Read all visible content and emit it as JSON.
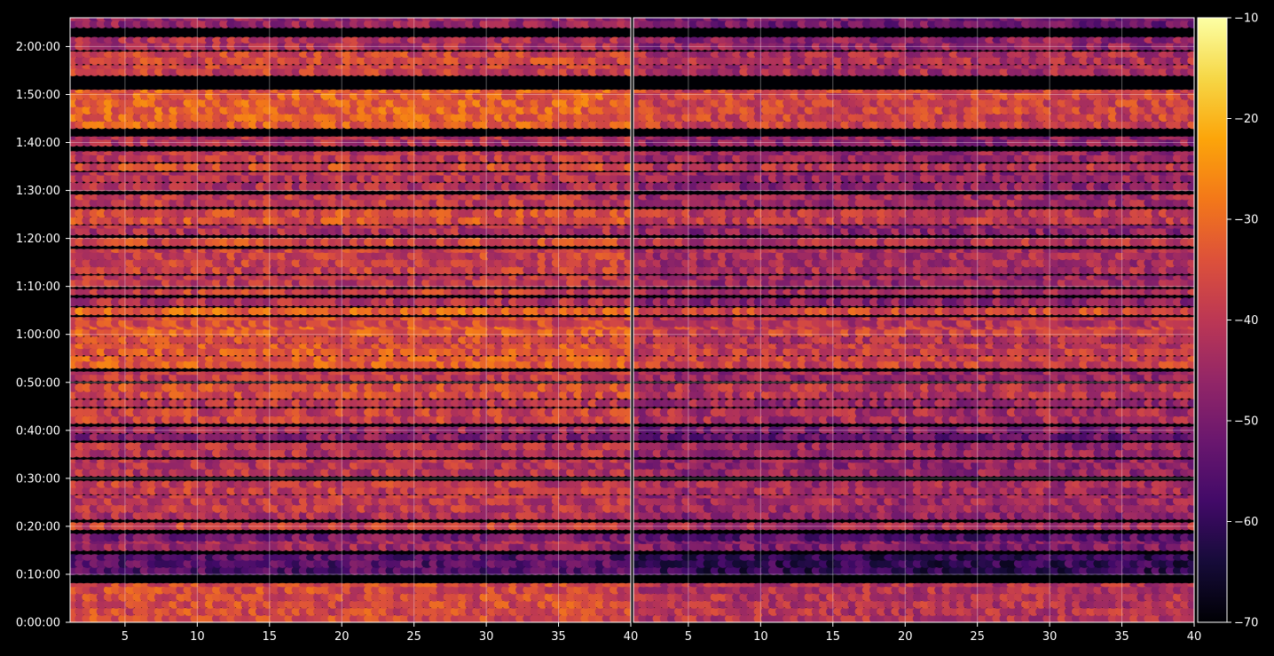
{
  "chart_data": {
    "type": "heatmap",
    "title": "",
    "colormap": "inferno",
    "background": "#000000",
    "grid": true,
    "panels": [
      {
        "name": "left",
        "xlim": [
          1.2,
          40
        ],
        "x_ticks": [
          "5",
          "10",
          "15",
          "20",
          "25",
          "30",
          "35",
          "40"
        ],
        "x_tick_values": [
          5,
          10,
          15,
          20,
          25,
          30,
          35,
          40
        ],
        "bias": 0
      },
      {
        "name": "right",
        "xlim": [
          1.2,
          40
        ],
        "x_ticks": [
          "5",
          "10",
          "15",
          "20",
          "25",
          "30",
          "35",
          "40"
        ],
        "x_tick_values": [
          5,
          10,
          15,
          20,
          25,
          30,
          35,
          40
        ],
        "bias": -5
      }
    ],
    "y_axis": {
      "lim_seconds": [
        0,
        7560
      ],
      "ticks": [
        "0:00:00",
        "0:10:00",
        "0:20:00",
        "0:30:00",
        "0:40:00",
        "0:50:00",
        "1:00:00",
        "1:10:00",
        "1:20:00",
        "1:30:00",
        "1:40:00",
        "1:50:00",
        "2:00:00"
      ],
      "tick_seconds": [
        0,
        600,
        1200,
        1800,
        2400,
        3000,
        3600,
        4200,
        4800,
        5400,
        6000,
        6600,
        7200
      ]
    },
    "colorbar": {
      "min": -70,
      "max": -10,
      "ticks": [
        "−10",
        "−20",
        "−30",
        "−40",
        "−50",
        "−60",
        "−70"
      ],
      "tick_values": [
        -10,
        -20,
        -30,
        -40,
        -50,
        -60,
        -70
      ]
    },
    "bands": [
      {
        "start": 0,
        "end": 480,
        "level": -36
      },
      {
        "start": 600,
        "end": 840,
        "level": -55
      },
      {
        "start": 900,
        "end": 1020,
        "level": -44
      },
      {
        "start": 1020,
        "end": 1100,
        "level": -50
      },
      {
        "start": 1160,
        "end": 1240,
        "level": -38
      },
      {
        "start": 1290,
        "end": 1380,
        "level": -42
      },
      {
        "start": 1380,
        "end": 1580,
        "level": -40
      },
      {
        "start": 1600,
        "end": 1760,
        "level": -39
      },
      {
        "start": 1830,
        "end": 2020,
        "level": -41
      },
      {
        "start": 2070,
        "end": 2240,
        "level": -41
      },
      {
        "start": 2280,
        "end": 2350,
        "level": -48
      },
      {
        "start": 2370,
        "end": 2440,
        "level": -44
      },
      {
        "start": 2490,
        "end": 2670,
        "level": -38
      },
      {
        "start": 2700,
        "end": 2780,
        "level": -40
      },
      {
        "start": 2800,
        "end": 2980,
        "level": -36
      },
      {
        "start": 3020,
        "end": 3120,
        "level": -40
      },
      {
        "start": 3180,
        "end": 3320,
        "level": -33
      },
      {
        "start": 3340,
        "end": 3480,
        "level": -34
      },
      {
        "start": 3490,
        "end": 3570,
        "level": -36
      },
      {
        "start": 3580,
        "end": 3700,
        "level": -33
      },
      {
        "start": 3700,
        "end": 3800,
        "level": -36
      },
      {
        "start": 3850,
        "end": 3930,
        "level": -31
      },
      {
        "start": 3960,
        "end": 4050,
        "level": -42
      },
      {
        "start": 4100,
        "end": 4160,
        "level": -38
      },
      {
        "start": 4200,
        "end": 4330,
        "level": -40
      },
      {
        "start": 4360,
        "end": 4660,
        "level": -38
      },
      {
        "start": 4710,
        "end": 4800,
        "level": -36
      },
      {
        "start": 4850,
        "end": 4950,
        "level": -42
      },
      {
        "start": 4980,
        "end": 5160,
        "level": -35
      },
      {
        "start": 5200,
        "end": 5340,
        "level": -39
      },
      {
        "start": 5400,
        "end": 5490,
        "level": -42
      },
      {
        "start": 5510,
        "end": 5620,
        "level": -41
      },
      {
        "start": 5650,
        "end": 5730,
        "level": -36
      },
      {
        "start": 5760,
        "end": 5880,
        "level": -40
      },
      {
        "start": 5960,
        "end": 6060,
        "level": -42
      },
      {
        "start": 6180,
        "end": 6650,
        "level": -32
      },
      {
        "start": 6840,
        "end": 6960,
        "level": -38
      },
      {
        "start": 6980,
        "end": 7130,
        "level": -37
      },
      {
        "start": 7160,
        "end": 7310,
        "level": -42
      },
      {
        "start": 7440,
        "end": 7560,
        "level": -46
      }
    ]
  }
}
